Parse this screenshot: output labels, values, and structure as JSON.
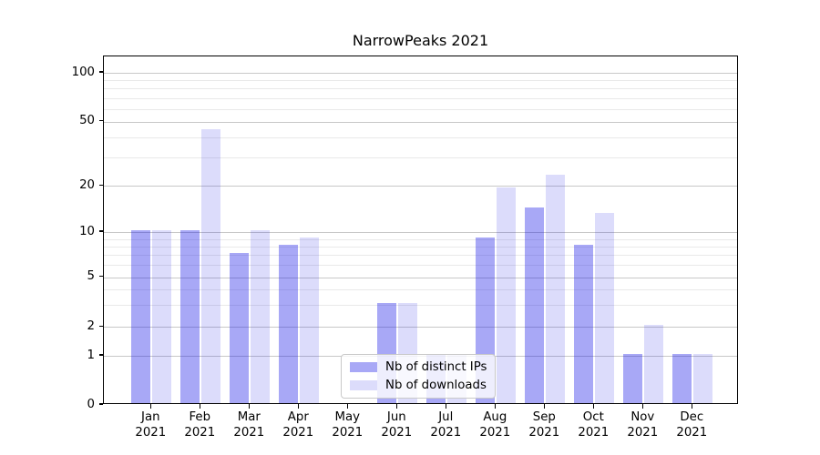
{
  "chart_data": {
    "type": "bar",
    "title": "NarrowPeaks 2021",
    "categories": [
      "Jan",
      "Feb",
      "Mar",
      "Apr",
      "May",
      "Jun",
      "Jul",
      "Aug",
      "Sep",
      "Oct",
      "Nov",
      "Dec"
    ],
    "year": "2021",
    "series": [
      {
        "name": "Nb of distinct IPs",
        "color": "rgba(20,20,230,0.37)",
        "values": [
          10,
          10,
          7,
          8,
          0,
          3,
          1,
          9,
          14,
          8,
          1,
          1
        ]
      },
      {
        "name": "Nb of downloads",
        "color": "rgba(20,20,230,0.15)",
        "values": [
          10,
          44,
          10,
          9,
          0,
          3,
          1,
          19,
          23,
          13,
          2,
          1
        ]
      }
    ],
    "xlabel": "",
    "ylabel": "",
    "yscale": "symlog",
    "ylim": [
      0,
      115
    ],
    "y_major_ticks": [
      0,
      1,
      2,
      5,
      10,
      20,
      50,
      100
    ],
    "y_minor_ticks": [
      3,
      4,
      6,
      7,
      8,
      9,
      30,
      40,
      60,
      70,
      80,
      90
    ],
    "grid": "both",
    "legend_position": "lower-center"
  },
  "colors": {
    "grid_major": "#c8c8c8",
    "grid_minor": "#e9e9e9",
    "axis": "#000000",
    "legend_border": "#c9c9c9",
    "legend_bg": "rgba(255,255,255,0.8)"
  }
}
